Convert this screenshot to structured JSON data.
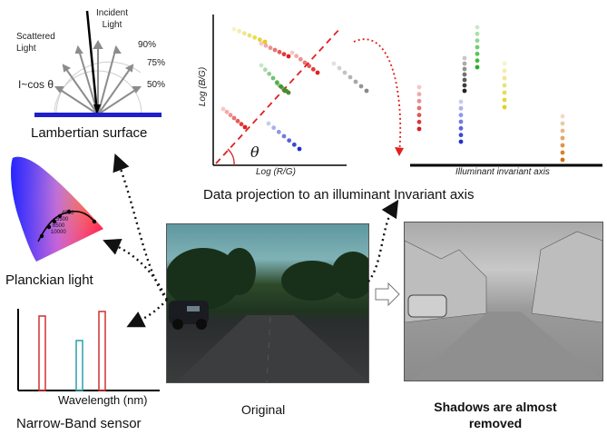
{
  "lambertian": {
    "incident": "Incident\nLight",
    "scattered": "Scattered\nLight",
    "cos_law": "I~cos θ",
    "pct_90": "90%",
    "pct_75": "75%",
    "pct_50": "50%",
    "caption": "Lambertian surface"
  },
  "planckian": {
    "caption": "Planckian light",
    "temps": [
      "4800",
      "5500",
      "6500",
      "10000"
    ]
  },
  "sensor": {
    "xlabel": "Wavelength (nm)",
    "caption": "Narrow-Band sensor"
  },
  "projection": {
    "ylabel": "Log (B/G)",
    "xlabel": "Log (R/G)",
    "theta": "θ",
    "axis_label": "Illuminant invariant axis",
    "caption": "Data projection to an illuminant Invariant axis"
  },
  "images": {
    "original_caption": "Original",
    "result_caption": "Shadows are almost removed"
  },
  "colors": {
    "surface_blue": "#1f1fcc",
    "dashed_red": "#e02020",
    "arrow_dotted": "#111111"
  }
}
